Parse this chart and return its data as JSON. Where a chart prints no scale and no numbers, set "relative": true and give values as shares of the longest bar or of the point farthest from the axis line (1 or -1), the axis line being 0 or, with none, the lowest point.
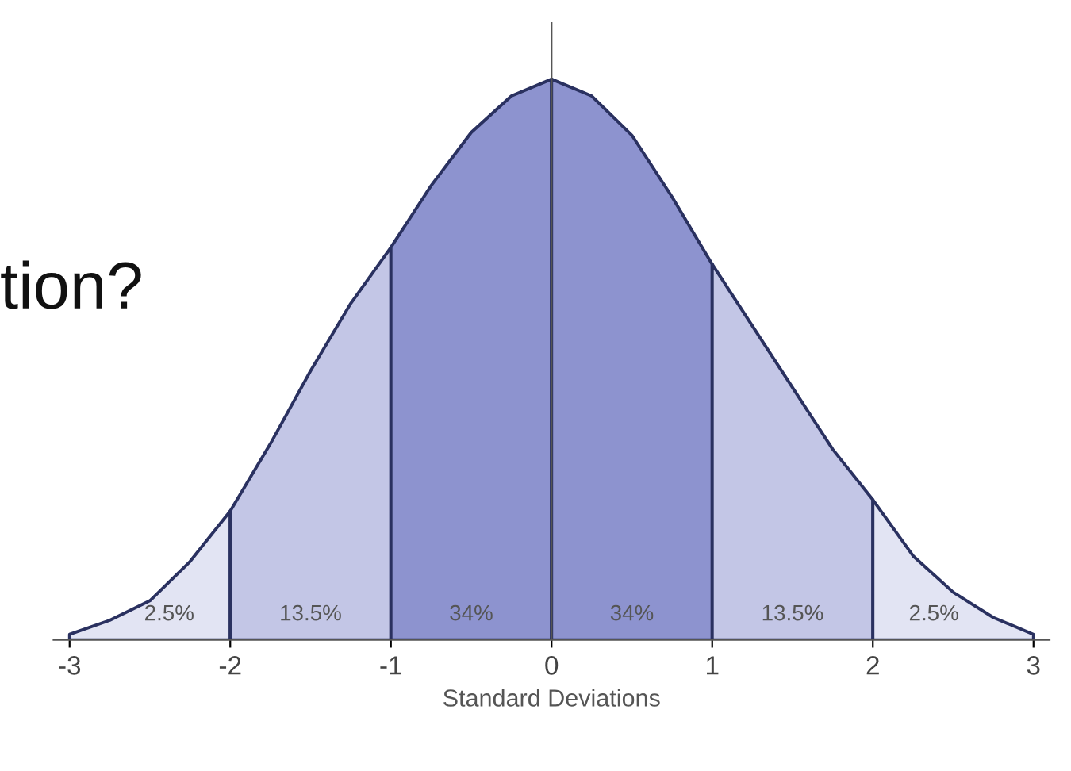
{
  "chart_data": {
    "type": "area",
    "relative": true,
    "xlabel": "Standard Deviations",
    "xlim": [
      -3.1,
      3.1
    ],
    "xticks": [
      -3,
      -2,
      -1,
      0,
      1,
      2,
      3
    ],
    "series": [
      {
        "color": "#e2e4f3",
        "x": [
          -3,
          -2.75,
          -2.5,
          -2.25,
          -2
        ],
        "values": [
          0.01,
          0.035,
          0.07,
          0.14,
          0.23
        ]
      },
      {
        "color": "#c3c6e6",
        "x": [
          -2,
          -1.75,
          -1.5,
          -1.25,
          -1
        ],
        "values": [
          0.23,
          0.35,
          0.48,
          0.6,
          0.7
        ]
      },
      {
        "color": "#8d93cf",
        "x": [
          -1,
          -0.75,
          -0.5,
          -0.25,
          0
        ],
        "values": [
          0.7,
          0.81,
          0.905,
          0.97,
          1
        ]
      },
      {
        "color": "#8d93cf",
        "x": [
          0,
          0.25,
          0.5,
          0.75,
          1
        ],
        "values": [
          1,
          0.97,
          0.9,
          0.79,
          0.67
        ]
      },
      {
        "color": "#c3c6e6",
        "x": [
          1,
          1.25,
          1.5,
          1.75,
          2
        ],
        "values": [
          0.67,
          0.56,
          0.45,
          0.34,
          0.25
        ]
      },
      {
        "color": "#e2e4f3",
        "x": [
          2,
          2.25,
          2.5,
          2.75,
          3
        ],
        "values": [
          0.25,
          0.15,
          0.085,
          0.04,
          0.01
        ]
      }
    ],
    "annotations": [
      "2.5%",
      "13.5%",
      "34%",
      "34%",
      "13.5%",
      "2.5%",
      "tion?"
    ]
  }
}
